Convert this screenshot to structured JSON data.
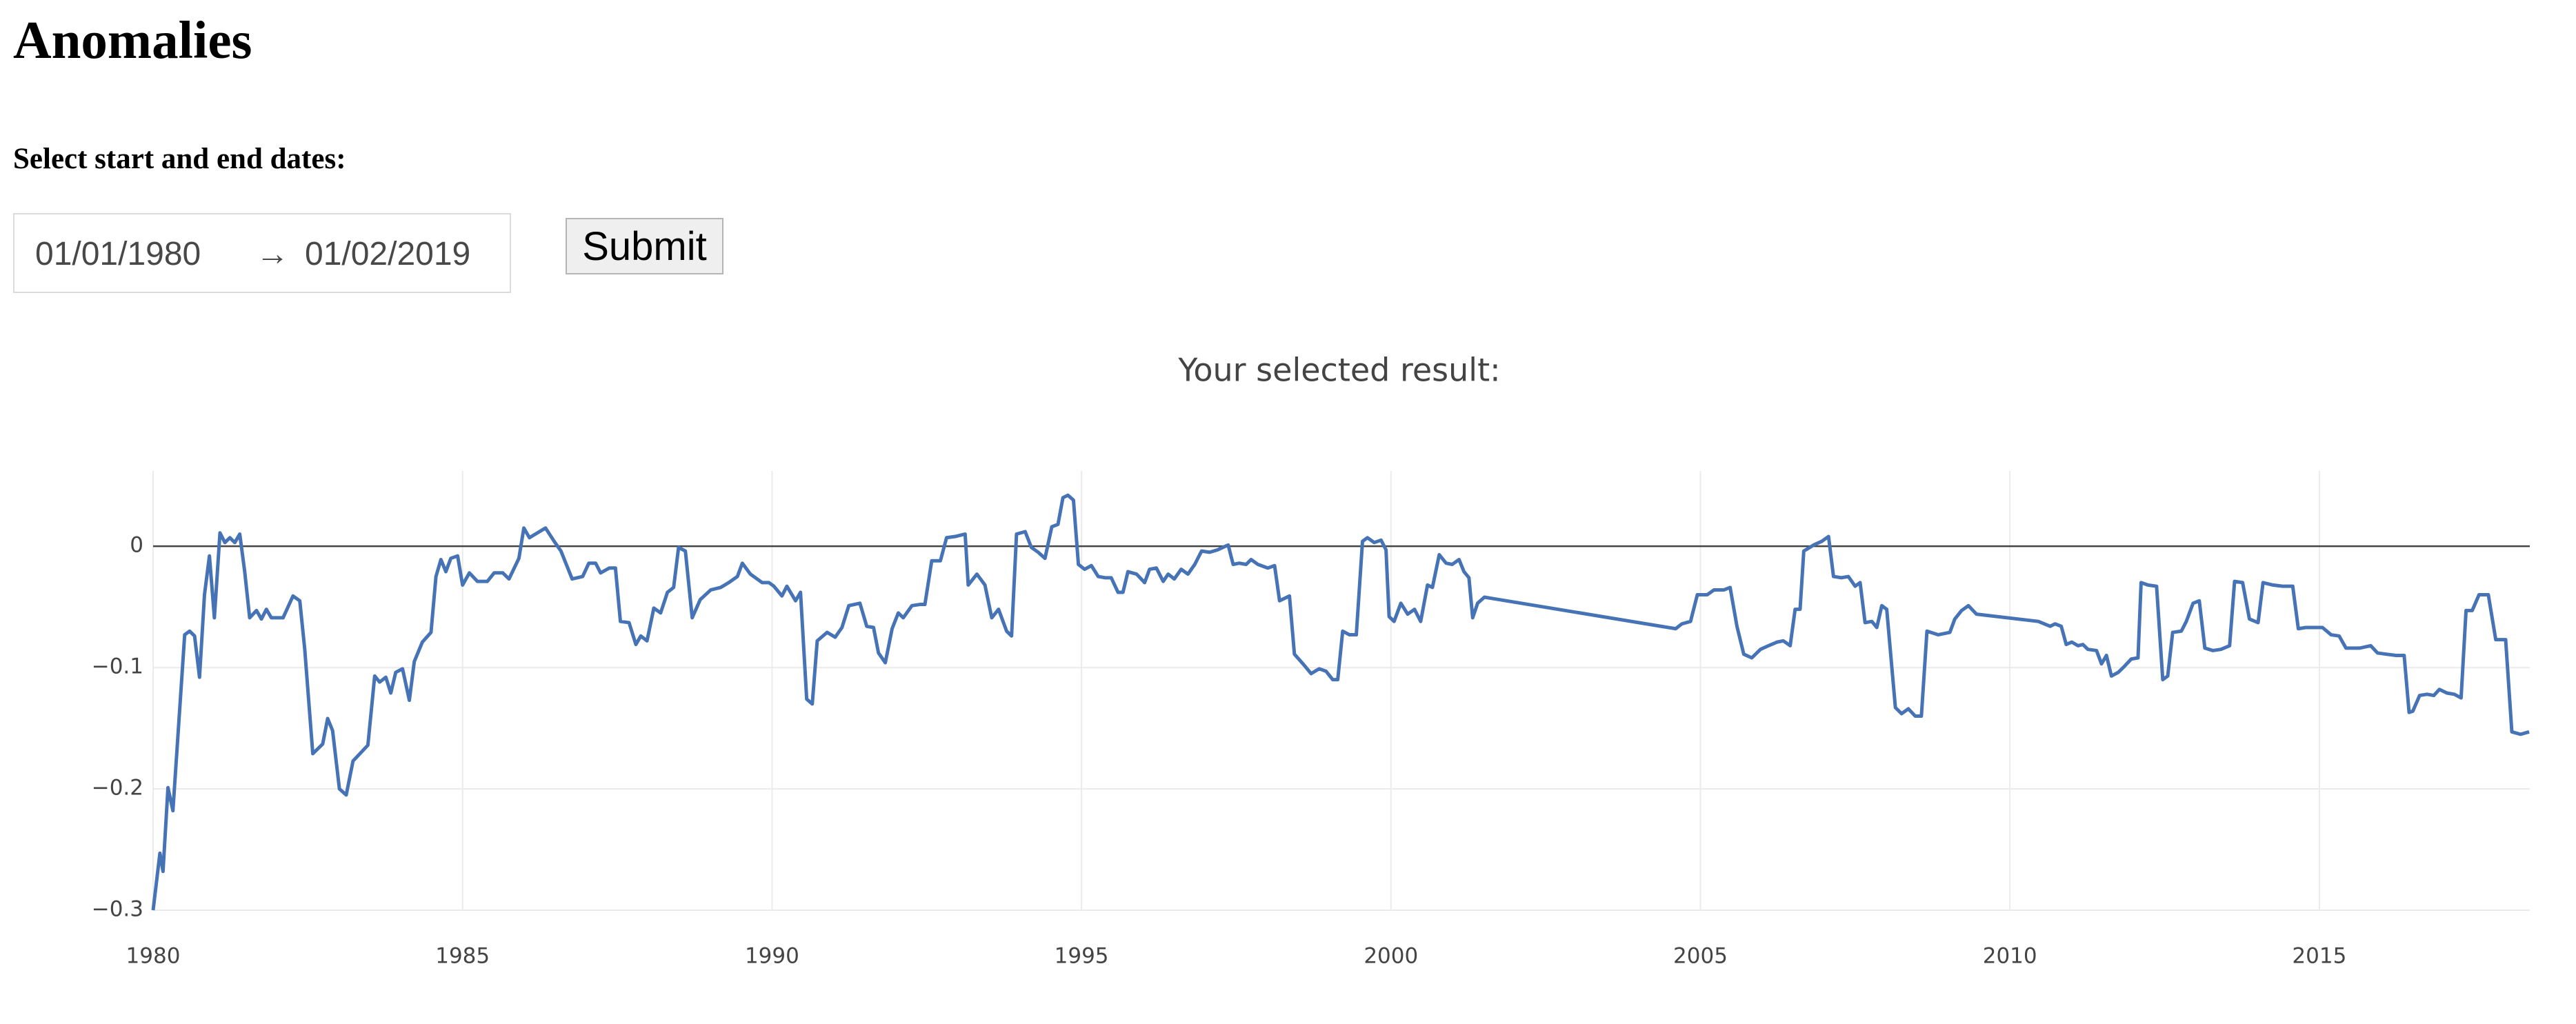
{
  "header": {
    "title": "Anomalies"
  },
  "form": {
    "label": "Select start and end dates:",
    "start_date": "01/01/1980",
    "separator": "→",
    "end_date": "01/02/2019",
    "submit": "Submit"
  },
  "chart_data": {
    "type": "line",
    "title": "Your selected result:",
    "x": [
      1980.0,
      1980.11,
      1980.16,
      1980.24,
      1980.32,
      1980.51,
      1980.59,
      1980.67,
      1980.75,
      1980.83,
      1980.91,
      1980.99,
      1981.08,
      1981.16,
      1981.24,
      1981.32,
      1981.4,
      1981.48,
      1981.56,
      1981.67,
      1981.75,
      1981.83,
      1981.91,
      1982.1,
      1982.26,
      1982.37,
      1982.45,
      1982.58,
      1982.74,
      1982.82,
      1982.9,
      1983.01,
      1983.12,
      1983.23,
      1983.47,
      1983.58,
      1983.66,
      1983.76,
      1983.84,
      1983.92,
      1984.03,
      1984.14,
      1984.22,
      1984.35,
      1984.49,
      1984.57,
      1984.65,
      1984.73,
      1984.81,
      1984.92,
      1985.0,
      1985.11,
      1985.24,
      1985.4,
      1985.51,
      1985.65,
      1985.75,
      1985.91,
      1985.99,
      1986.08,
      1986.21,
      1986.34,
      1986.48,
      1986.59,
      1986.77,
      1986.94,
      1987.04,
      1987.15,
      1987.23,
      1987.37,
      1987.47,
      1987.55,
      1987.69,
      1987.8,
      1987.88,
      1987.98,
      1988.09,
      1988.2,
      1988.31,
      1988.41,
      1988.49,
      1988.6,
      1988.71,
      1988.84,
      1989.01,
      1989.17,
      1989.3,
      1989.44,
      1989.52,
      1989.65,
      1989.84,
      1989.95,
      1990.03,
      1990.16,
      1990.24,
      1990.38,
      1990.46,
      1990.56,
      1990.65,
      1990.73,
      1990.89,
      1991.02,
      1991.13,
      1991.24,
      1991.42,
      1991.53,
      1991.64,
      1991.72,
      1991.83,
      1991.94,
      1992.04,
      1992.12,
      1992.26,
      1992.39,
      1992.47,
      1992.58,
      1992.72,
      1992.82,
      1992.96,
      1993.12,
      1993.17,
      1993.31,
      1993.44,
      1993.55,
      1993.66,
      1993.79,
      1993.87,
      1993.95,
      1994.09,
      1994.19,
      1994.3,
      1994.41,
      1994.52,
      1994.62,
      1994.7,
      1994.78,
      1994.87,
      1994.95,
      1995.05,
      1995.16,
      1995.27,
      1995.38,
      1995.48,
      1995.59,
      1995.67,
      1995.75,
      1995.89,
      1996.02,
      1996.1,
      1996.21,
      1996.32,
      1996.4,
      1996.5,
      1996.61,
      1996.72,
      1996.83,
      1996.94,
      1997.07,
      1997.2,
      1997.37,
      1997.45,
      1997.55,
      1997.66,
      1997.74,
      1997.85,
      1998.01,
      1998.12,
      1998.2,
      1998.36,
      1998.44,
      1998.58,
      1998.71,
      1998.84,
      1998.95,
      1999.06,
      1999.14,
      1999.22,
      1999.33,
      1999.44,
      1999.54,
      1999.62,
      1999.73,
      1999.84,
      1999.92,
      1999.97,
      2000.05,
      2000.16,
      2000.27,
      2000.38,
      2000.48,
      2000.59,
      2000.67,
      2000.78,
      2000.89,
      2000.99,
      2001.1,
      2001.18,
      2001.26,
      2001.32,
      2001.4,
      2001.51,
      2004.6,
      2004.7,
      2004.84,
      2004.95,
      2005.11,
      2005.22,
      2005.38,
      2005.48,
      2005.59,
      2005.7,
      2005.83,
      2005.97,
      2006.1,
      2006.24,
      2006.34,
      2006.45,
      2006.53,
      2006.61,
      2006.67,
      2006.83,
      2006.96,
      2007.07,
      2007.15,
      2007.28,
      2007.39,
      2007.5,
      2007.58,
      2007.66,
      2007.77,
      2007.85,
      2007.93,
      2008.01,
      2008.15,
      2008.25,
      2008.36,
      2008.47,
      2008.57,
      2008.66,
      2008.84,
      2009.03,
      2009.11,
      2009.22,
      2009.33,
      2009.46,
      2010.46,
      2010.65,
      2010.73,
      2010.83,
      2010.91,
      2011.0,
      2011.1,
      2011.18,
      2011.26,
      2011.4,
      2011.48,
      2011.56,
      2011.64,
      2011.75,
      2011.85,
      2011.96,
      2012.07,
      2012.12,
      2012.23,
      2012.37,
      2012.47,
      2012.55,
      2012.63,
      2012.77,
      2012.85,
      2012.96,
      2013.06,
      2013.15,
      2013.28,
      2013.41,
      2013.55,
      2013.63,
      2013.76,
      2013.87,
      2014.01,
      2014.09,
      2014.25,
      2014.41,
      2014.57,
      2014.66,
      2014.78,
      2014.97,
      2015.05,
      2015.19,
      2015.32,
      2015.43,
      2015.65,
      2015.83,
      2015.94,
      2016.08,
      2016.24,
      2016.37,
      2016.45,
      2016.51,
      2016.62,
      2016.74,
      2016.85,
      2016.94,
      2017.06,
      2017.18,
      2017.29,
      2017.37,
      2017.47,
      2017.58,
      2017.73,
      2017.85,
      2018.01,
      2018.11,
      2018.25,
      2018.39
    ],
    "series": [
      {
        "color": "#4673b5",
        "values": [
          -0.3,
          -0.253,
          -0.268,
          -0.199,
          -0.218,
          -0.073,
          -0.07,
          -0.074,
          -0.108,
          -0.04,
          -0.008,
          -0.059,
          0.011,
          0.003,
          0.007,
          0.003,
          0.01,
          -0.021,
          -0.059,
          -0.053,
          -0.06,
          -0.052,
          -0.059,
          -0.059,
          -0.041,
          -0.045,
          -0.085,
          -0.171,
          -0.163,
          -0.142,
          -0.152,
          -0.2,
          -0.205,
          -0.177,
          -0.164,
          -0.107,
          -0.112,
          -0.108,
          -0.121,
          -0.104,
          -0.101,
          -0.127,
          -0.095,
          -0.079,
          -0.071,
          -0.025,
          -0.011,
          -0.021,
          -0.01,
          -0.008,
          -0.032,
          -0.022,
          -0.029,
          -0.029,
          -0.022,
          -0.022,
          -0.027,
          -0.01,
          0.015,
          0.007,
          0.011,
          0.015,
          0.004,
          -0.004,
          -0.027,
          -0.025,
          -0.014,
          -0.014,
          -0.022,
          -0.018,
          -0.018,
          -0.062,
          -0.063,
          -0.081,
          -0.074,
          -0.078,
          -0.051,
          -0.055,
          -0.038,
          -0.034,
          -0.001,
          -0.004,
          -0.059,
          -0.044,
          -0.036,
          -0.034,
          -0.03,
          -0.025,
          -0.014,
          -0.023,
          -0.03,
          -0.03,
          -0.033,
          -0.041,
          -0.033,
          -0.045,
          -0.038,
          -0.126,
          -0.13,
          -0.078,
          -0.071,
          -0.075,
          -0.067,
          -0.049,
          -0.047,
          -0.066,
          -0.067,
          -0.088,
          -0.096,
          -0.068,
          -0.055,
          -0.059,
          -0.049,
          -0.048,
          -0.048,
          -0.012,
          -0.012,
          0.007,
          0.008,
          0.01,
          -0.032,
          -0.023,
          -0.032,
          -0.059,
          -0.052,
          -0.07,
          -0.074,
          0.01,
          0.012,
          -0.001,
          -0.005,
          -0.01,
          0.016,
          0.018,
          0.04,
          0.042,
          0.038,
          -0.015,
          -0.019,
          -0.016,
          -0.025,
          -0.026,
          -0.026,
          -0.038,
          -0.038,
          -0.021,
          -0.023,
          -0.03,
          -0.019,
          -0.018,
          -0.029,
          -0.023,
          -0.027,
          -0.019,
          -0.023,
          -0.015,
          -0.004,
          -0.005,
          -0.003,
          0.001,
          -0.015,
          -0.014,
          -0.015,
          -0.011,
          -0.015,
          -0.018,
          -0.016,
          -0.045,
          -0.041,
          -0.089,
          -0.097,
          -0.105,
          -0.101,
          -0.103,
          -0.11,
          -0.11,
          -0.07,
          -0.073,
          -0.073,
          0.004,
          0.007,
          0.003,
          0.005,
          -0.003,
          -0.058,
          -0.062,
          -0.047,
          -0.056,
          -0.052,
          -0.062,
          -0.032,
          -0.034,
          -0.007,
          -0.014,
          -0.015,
          -0.011,
          -0.021,
          -0.026,
          -0.059,
          -0.047,
          -0.042,
          -0.068,
          -0.064,
          -0.062,
          -0.04,
          -0.04,
          -0.036,
          -0.036,
          -0.034,
          -0.066,
          -0.089,
          -0.092,
          -0.085,
          -0.082,
          -0.079,
          -0.078,
          -0.082,
          -0.052,
          -0.052,
          -0.004,
          0.001,
          0.004,
          0.008,
          -0.025,
          -0.026,
          -0.025,
          -0.033,
          -0.03,
          -0.063,
          -0.062,
          -0.067,
          -0.049,
          -0.052,
          -0.133,
          -0.138,
          -0.134,
          -0.14,
          -0.14,
          -0.07,
          -0.073,
          -0.071,
          -0.06,
          -0.053,
          -0.049,
          -0.056,
          -0.062,
          -0.066,
          -0.064,
          -0.066,
          -0.081,
          -0.079,
          -0.082,
          -0.081,
          -0.085,
          -0.086,
          -0.097,
          -0.09,
          -0.107,
          -0.104,
          -0.099,
          -0.093,
          -0.092,
          -0.03,
          -0.032,
          -0.033,
          -0.11,
          -0.107,
          -0.071,
          -0.07,
          -0.062,
          -0.047,
          -0.045,
          -0.084,
          -0.086,
          -0.085,
          -0.082,
          -0.029,
          -0.03,
          -0.06,
          -0.063,
          -0.03,
          -0.032,
          -0.033,
          -0.033,
          -0.068,
          -0.067,
          -0.067,
          -0.067,
          -0.073,
          -0.074,
          -0.084,
          -0.084,
          -0.082,
          -0.088,
          -0.089,
          -0.09,
          -0.09,
          -0.137,
          -0.136,
          -0.123,
          -0.122,
          -0.123,
          -0.118,
          -0.121,
          -0.122,
          -0.125,
          -0.053,
          -0.053,
          -0.04,
          -0.04,
          -0.077,
          -0.077,
          -0.153,
          -0.155,
          -0.153
        ]
      }
    ],
    "xlim": [
      1980,
      2018.4
    ],
    "xticks": [
      1980,
      1985,
      1990,
      1995,
      2000,
      2005,
      2010,
      2015
    ],
    "ylim": [
      -0.3,
      0.062
    ],
    "yticks": [
      {
        "value": -0.3,
        "label": "−0.3"
      },
      {
        "value": -0.2,
        "label": "−0.2"
      },
      {
        "value": -0.1,
        "label": "−0.1"
      },
      0
    ],
    "grid": true,
    "zeroline": true
  }
}
